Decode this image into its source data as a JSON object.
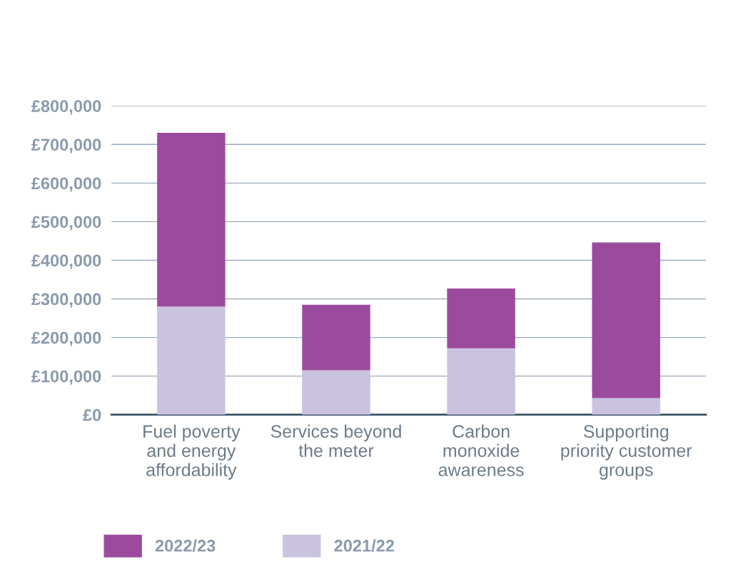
{
  "chart_data": {
    "type": "bar",
    "stacked": true,
    "categories": [
      "Fuel poverty\nand energy\naffordability",
      "Services beyond\nthe meter",
      "Carbon\nmonoxide\nawareness",
      "Supporting\npriority customer\ngroups"
    ],
    "series": [
      {
        "name": "2021/22",
        "color": "#c9c3e0",
        "values": [
          280000,
          115000,
          172000,
          43000
        ]
      },
      {
        "name": "2022/23",
        "color": "#9b4b9e",
        "values": [
          450000,
          170000,
          155000,
          403000
        ]
      }
    ],
    "ylim": [
      0,
      800000
    ],
    "yticks": [
      {
        "value": 0,
        "label": "£0"
      },
      {
        "value": 100000,
        "label": "£100,000"
      },
      {
        "value": 200000,
        "label": "£200,000"
      },
      {
        "value": 300000,
        "label": "£300,000"
      },
      {
        "value": 400000,
        "label": "£400,000"
      },
      {
        "value": 500000,
        "label": "£500,000"
      },
      {
        "value": 600000,
        "label": "£600,000"
      },
      {
        "value": 700000,
        "label": "£700,000"
      },
      {
        "value": 800000,
        "label": "£800,000"
      }
    ],
    "grid": "y",
    "legend": "bottom left"
  }
}
